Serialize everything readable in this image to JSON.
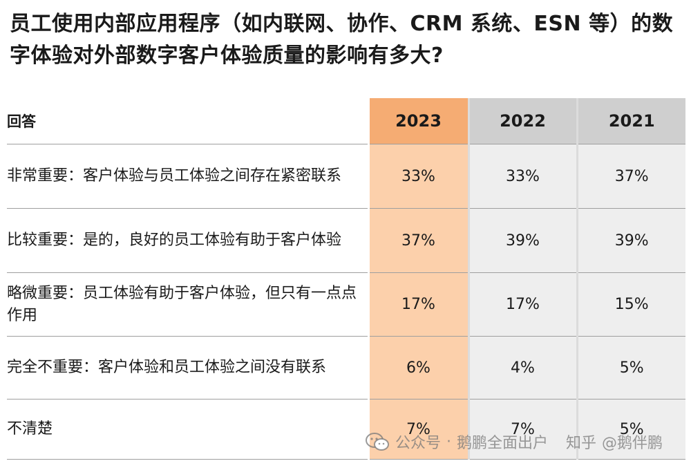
{
  "title": "员工使用内部应用程序（如内联网、协作、CRM 系统、ESN 等）的数字体验对外部数字客户体验质量的影响有多大?",
  "chart_data": {
    "type": "table",
    "header": {
      "label": "回答",
      "years": [
        "2023",
        "2022",
        "2021"
      ]
    },
    "rows": [
      {
        "label": "非常重要：客户体验与员工体验之间存在紧密联系",
        "values": [
          "33%",
          "33%",
          "37%"
        ]
      },
      {
        "label": "比较重要：是的，良好的员工体验有助于客户体验",
        "values": [
          "37%",
          "39%",
          "39%"
        ]
      },
      {
        "label": "略微重要：员工体验有助于客户体验，但只有一点点作用",
        "values": [
          "17%",
          "17%",
          "15%"
        ]
      },
      {
        "label": "完全不重要：客户体验和员工体验之间没有联系",
        "values": [
          "6%",
          "4%",
          "5%"
        ]
      },
      {
        "label": "不清楚",
        "values": [
          "7%",
          "7%",
          "5%"
        ]
      }
    ],
    "highlight_column": "2023",
    "colors": {
      "highlight_header": "#f5ac73",
      "highlight_cell": "#fcd0ab",
      "header": "#cfcfcf",
      "cell": "#eeeeee"
    }
  },
  "watermark": {
    "icon": "wechat-icon",
    "account": "公众号",
    "name": "鹅鹏全面出户",
    "site": "知乎",
    "handle": "@鹅伴鹏"
  }
}
